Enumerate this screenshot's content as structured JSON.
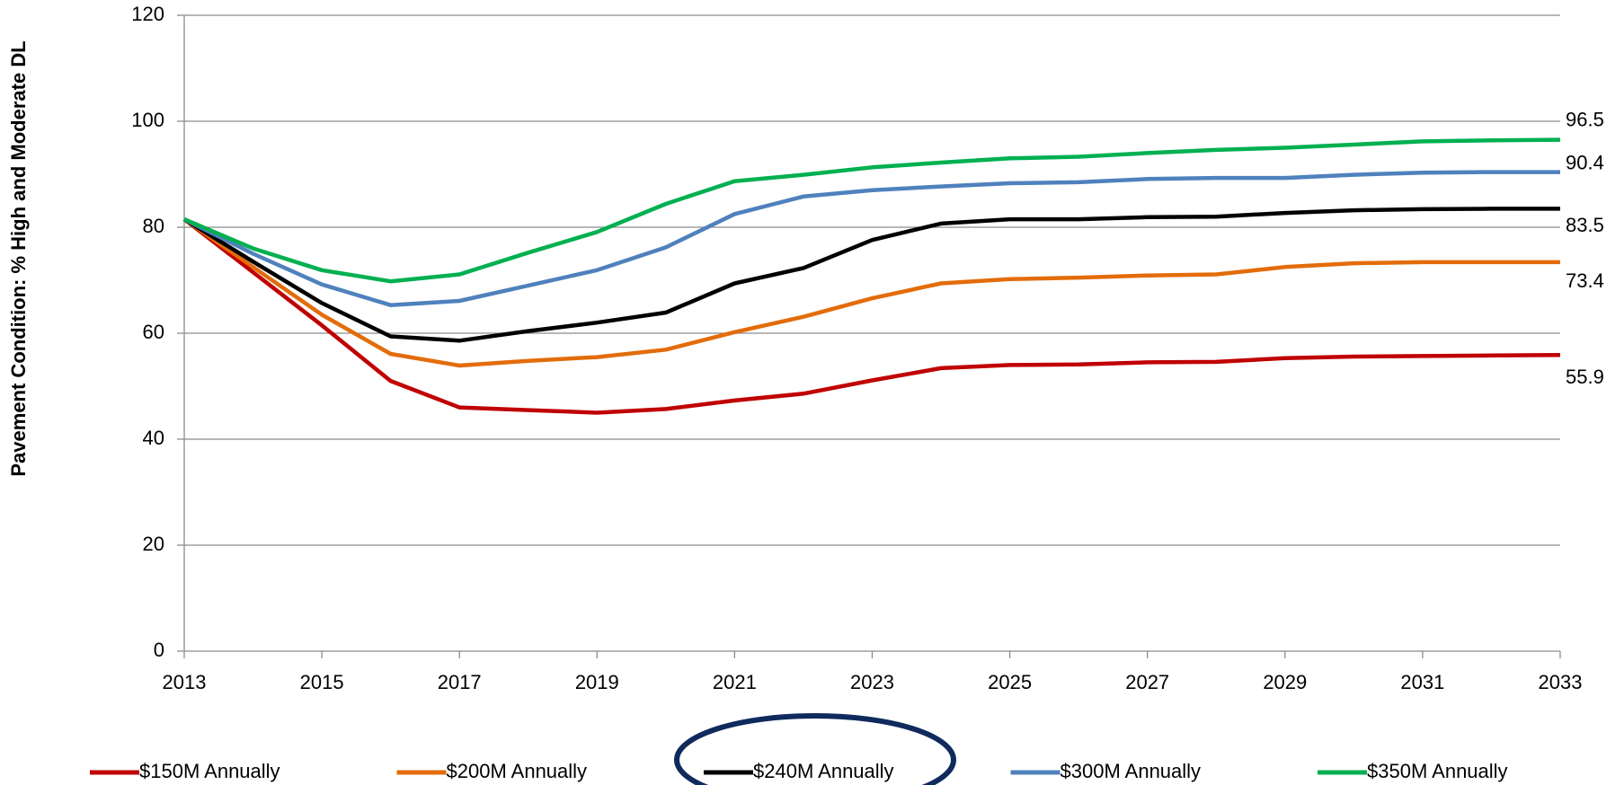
{
  "chart_data": {
    "type": "line",
    "y_label": "Pavement Condition: % High and Moderate DL",
    "x": [
      2013,
      2014,
      2015,
      2016,
      2017,
      2018,
      2019,
      2020,
      2021,
      2022,
      2023,
      2024,
      2025,
      2026,
      2027,
      2028,
      2029,
      2030,
      2031,
      2032,
      2033
    ],
    "xlim": [
      2013,
      2033
    ],
    "xticks": [
      2013,
      2015,
      2017,
      2019,
      2021,
      2023,
      2025,
      2027,
      2029,
      2031,
      2033
    ],
    "ylim": [
      0,
      120
    ],
    "yticks": [
      0,
      20,
      40,
      60,
      80,
      100,
      120
    ],
    "grid": true,
    "legend": "bottom",
    "series": [
      {
        "name": "$150M Annually",
        "color": "#c00000",
        "values": [
          81.5,
          71.5,
          61.5,
          51,
          46,
          45.5,
          45,
          45.7,
          47.3,
          48.6,
          51.1,
          53.4,
          54,
          54.1,
          54.5,
          54.6,
          55.3,
          55.6,
          55.7,
          55.8,
          55.9
        ]
      },
      {
        "name": "$200M Annually",
        "color": "#e36c0a",
        "values": [
          81.5,
          72.5,
          63.5,
          56.1,
          53.9,
          54.8,
          55.5,
          56.9,
          60.2,
          63.1,
          66.6,
          69.4,
          70.2,
          70.5,
          70.9,
          71.1,
          72.5,
          73.2,
          73.4,
          73.4,
          73.4
        ]
      },
      {
        "name": "$240M Annually",
        "color": "#000000",
        "values": [
          81.5,
          73.5,
          65.7,
          59.4,
          58.6,
          60.4,
          62,
          63.9,
          69.4,
          72.3,
          77.6,
          80.7,
          81.5,
          81.5,
          81.9,
          82,
          82.7,
          83.2,
          83.4,
          83.5,
          83.5
        ]
      },
      {
        "name": "$300M Annually",
        "color": "#4f81bd",
        "values": [
          81.5,
          75,
          69.2,
          65.3,
          66.1,
          69,
          71.9,
          76.2,
          82.5,
          85.8,
          87,
          87.7,
          88.3,
          88.5,
          89.1,
          89.3,
          89.3,
          89.9,
          90.3,
          90.4,
          90.4
        ]
      },
      {
        "name": "$350M Annually",
        "color": "#00b050",
        "values": [
          81.5,
          76,
          71.9,
          69.8,
          71.1,
          75.2,
          79.1,
          84.4,
          88.7,
          89.9,
          91.3,
          92.2,
          93,
          93.3,
          94,
          94.6,
          95,
          95.6,
          96.2,
          96.4,
          96.5
        ]
      }
    ]
  }
}
